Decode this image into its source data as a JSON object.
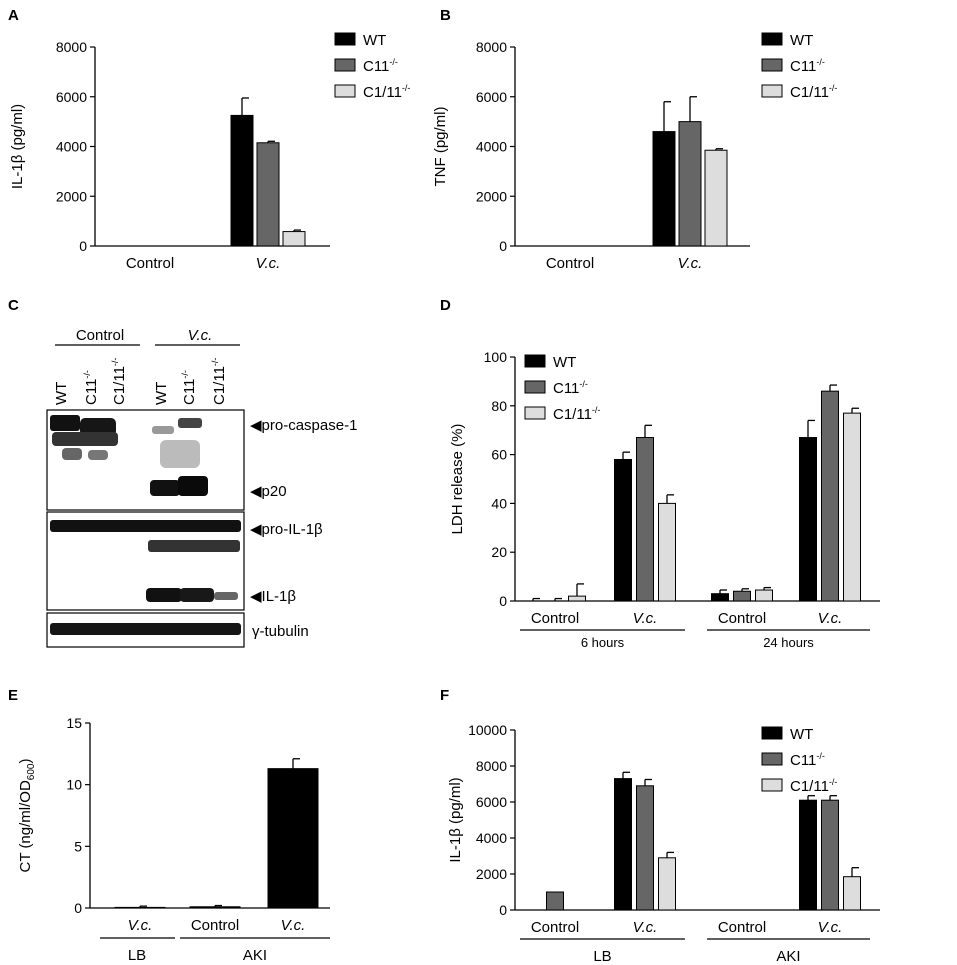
{
  "colors": {
    "WT": "#000000",
    "C11": "#666666",
    "C1_11": "#dddddd",
    "axis": "#000000"
  },
  "panels": {
    "A": {
      "letter": "A"
    },
    "B": {
      "letter": "B"
    },
    "C": {
      "letter": "C",
      "groups": [
        "Control",
        "V.c."
      ],
      "lanes": [
        {
          "main": "WT",
          "sup": ""
        },
        {
          "main": "C11",
          "sup": "-/-"
        },
        {
          "main": "C1/11",
          "sup": "-/-"
        },
        {
          "main": "WT",
          "sup": ""
        },
        {
          "main": "C11",
          "sup": "-/-"
        },
        {
          "main": "C1/11",
          "sup": "-/-"
        }
      ],
      "band_labels": [
        "◀pro-caspase-1",
        "◀p20",
        "◀pro-IL-1β",
        "◀IL-1β",
        "γ-tubulin"
      ]
    },
    "D": {
      "letter": "D",
      "groups": [
        "6 hours",
        "24 hours"
      ]
    },
    "E": {
      "letter": "E",
      "groups": [
        "LB",
        "AKI"
      ]
    },
    "F": {
      "letter": "F",
      "groups": [
        "LB",
        "AKI"
      ]
    }
  },
  "legend": [
    {
      "main": "WT",
      "sup": ""
    },
    {
      "main": "C11",
      "sup": "-/-"
    },
    {
      "main": "C1/11",
      "sup": "-/-"
    }
  ],
  "chart_data": [
    {
      "panel": "A",
      "type": "bar",
      "ylabel": "IL-1β (pg/ml)",
      "ylim": [
        0,
        8000
      ],
      "yticks": [
        0,
        2000,
        4000,
        6000,
        8000
      ],
      "categories": [
        "Control",
        "V.c."
      ],
      "italic_categories": [
        false,
        true
      ],
      "series": [
        {
          "name": "WT",
          "values": [
            0,
            5250
          ],
          "errors": [
            0,
            700
          ]
        },
        {
          "name": "C11-/-",
          "values": [
            0,
            4150
          ],
          "errors": [
            0,
            60
          ]
        },
        {
          "name": "C1/11-/-",
          "values": [
            0,
            580
          ],
          "errors": [
            0,
            60
          ]
        }
      ],
      "legend": "top-right"
    },
    {
      "panel": "B",
      "type": "bar",
      "ylabel": "TNF (pg/ml)",
      "ylim": [
        0,
        8000
      ],
      "yticks": [
        0,
        2000,
        4000,
        6000,
        8000
      ],
      "categories": [
        "Control",
        "V.c."
      ],
      "italic_categories": [
        false,
        true
      ],
      "series": [
        {
          "name": "WT",
          "values": [
            0,
            4600
          ],
          "errors": [
            0,
            1200
          ]
        },
        {
          "name": "C11-/-",
          "values": [
            0,
            5000
          ],
          "errors": [
            0,
            1000
          ]
        },
        {
          "name": "C1/11-/-",
          "values": [
            0,
            3850
          ],
          "errors": [
            0,
            60
          ]
        }
      ],
      "legend": "top-right"
    },
    {
      "panel": "D",
      "type": "bar",
      "ylabel": "LDH release (%)",
      "ylim": [
        0,
        100
      ],
      "yticks": [
        0,
        20,
        40,
        60,
        80,
        100
      ],
      "categories": [
        "Control",
        "V.c.",
        "Control",
        "V.c."
      ],
      "italic_categories": [
        false,
        true,
        false,
        true
      ],
      "series": [
        {
          "name": "WT",
          "values": [
            0,
            58,
            3,
            67
          ],
          "errors": [
            1,
            3,
            1.5,
            7
          ]
        },
        {
          "name": "C11-/-",
          "values": [
            0,
            67,
            4,
            86
          ],
          "errors": [
            1,
            5,
            1,
            2.5
          ]
        },
        {
          "name": "C1/11-/-",
          "values": [
            2,
            40,
            4.5,
            77
          ],
          "errors": [
            5,
            3.5,
            1,
            2
          ]
        }
      ],
      "legend": "top-left"
    },
    {
      "panel": "E",
      "type": "bar",
      "ylabel": "CT (ng/ml/OD",
      "ylabel_sub": "600",
      "ylabel_end": ")",
      "ylim": [
        0,
        15
      ],
      "yticks": [
        0,
        5,
        10,
        15
      ],
      "categories": [
        "V.c.",
        "Control",
        "V.c."
      ],
      "italic_categories": [
        true,
        false,
        true
      ],
      "series": [
        {
          "name": "CT",
          "values": [
            0.05,
            0.1,
            11.3
          ],
          "errors": [
            0.1,
            0.1,
            0.8
          ]
        }
      ]
    },
    {
      "panel": "F",
      "type": "bar",
      "ylabel": "IL-1β (pg/ml)",
      "ylim": [
        0,
        10000
      ],
      "yticks": [
        0,
        2000,
        4000,
        6000,
        8000,
        10000
      ],
      "categories": [
        "Control",
        "V.c.",
        "Control",
        "V.c."
      ],
      "italic_categories": [
        false,
        true,
        false,
        true
      ],
      "series": [
        {
          "name": "WT",
          "values": [
            0,
            7300,
            0,
            6100
          ],
          "errors": [
            0,
            350,
            0,
            250
          ]
        },
        {
          "name": "C11-/-",
          "values": [
            1000,
            6900,
            0,
            6100
          ],
          "errors": [
            0,
            350,
            0,
            250
          ]
        },
        {
          "name": "C1/11-/-",
          "values": [
            0,
            2900,
            0,
            1850
          ],
          "errors": [
            0,
            300,
            0,
            500
          ]
        }
      ],
      "legend": "top-right"
    }
  ]
}
